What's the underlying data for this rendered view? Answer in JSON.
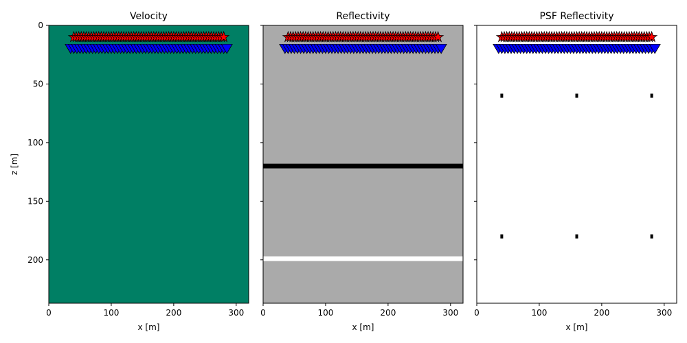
{
  "chart_data": [
    {
      "type": "heatmap",
      "title": "Velocity",
      "xlabel": "x [m]",
      "ylabel": "z [m]",
      "xlim": [
        0,
        320
      ],
      "ylim": [
        237,
        0
      ],
      "xticks": [
        0,
        100,
        200,
        300
      ],
      "yticks": [
        0,
        50,
        100,
        150,
        200
      ],
      "show_ytick_labels": true,
      "background_color": "#007f64",
      "bands": [],
      "dots": []
    },
    {
      "type": "heatmap",
      "title": "Reflectivity",
      "xlabel": "x [m]",
      "ylabel": "",
      "xlim": [
        0,
        320
      ],
      "ylim": [
        237,
        0
      ],
      "xticks": [
        0,
        100,
        200,
        300
      ],
      "yticks": [
        0,
        50,
        100,
        150,
        200
      ],
      "show_ytick_labels": false,
      "background_color": "#aaaaaa",
      "bands": [
        {
          "z_from": 118,
          "z_to": 122,
          "color": "#000000"
        },
        {
          "z_from": 197,
          "z_to": 201,
          "color": "#ffffff"
        }
      ],
      "dots": []
    },
    {
      "type": "scatter",
      "title": "PSF Reflectivity",
      "xlabel": "x [m]",
      "ylabel": "",
      "xlim": [
        0,
        320
      ],
      "ylim": [
        237,
        0
      ],
      "xticks": [
        0,
        100,
        200,
        300
      ],
      "yticks": [
        0,
        50,
        100,
        150,
        200
      ],
      "show_ytick_labels": false,
      "background_color": "#ffffff",
      "bands": [],
      "dots": [
        {
          "x": 40,
          "z": 60
        },
        {
          "x": 160,
          "z": 60
        },
        {
          "x": 280,
          "z": 60
        },
        {
          "x": 40,
          "z": 180
        },
        {
          "x": 160,
          "z": 180
        },
        {
          "x": 280,
          "z": 180
        }
      ]
    }
  ],
  "sources": {
    "name": "sources",
    "marker": "star",
    "color": "#ff0000",
    "z": 10,
    "x_start": 40,
    "x_end": 280,
    "count": 61
  },
  "receivers": {
    "name": "receivers",
    "marker": "triangle-down",
    "color": "#0000ff",
    "z": 20,
    "x_start": 35,
    "x_end": 285,
    "count": 51
  }
}
